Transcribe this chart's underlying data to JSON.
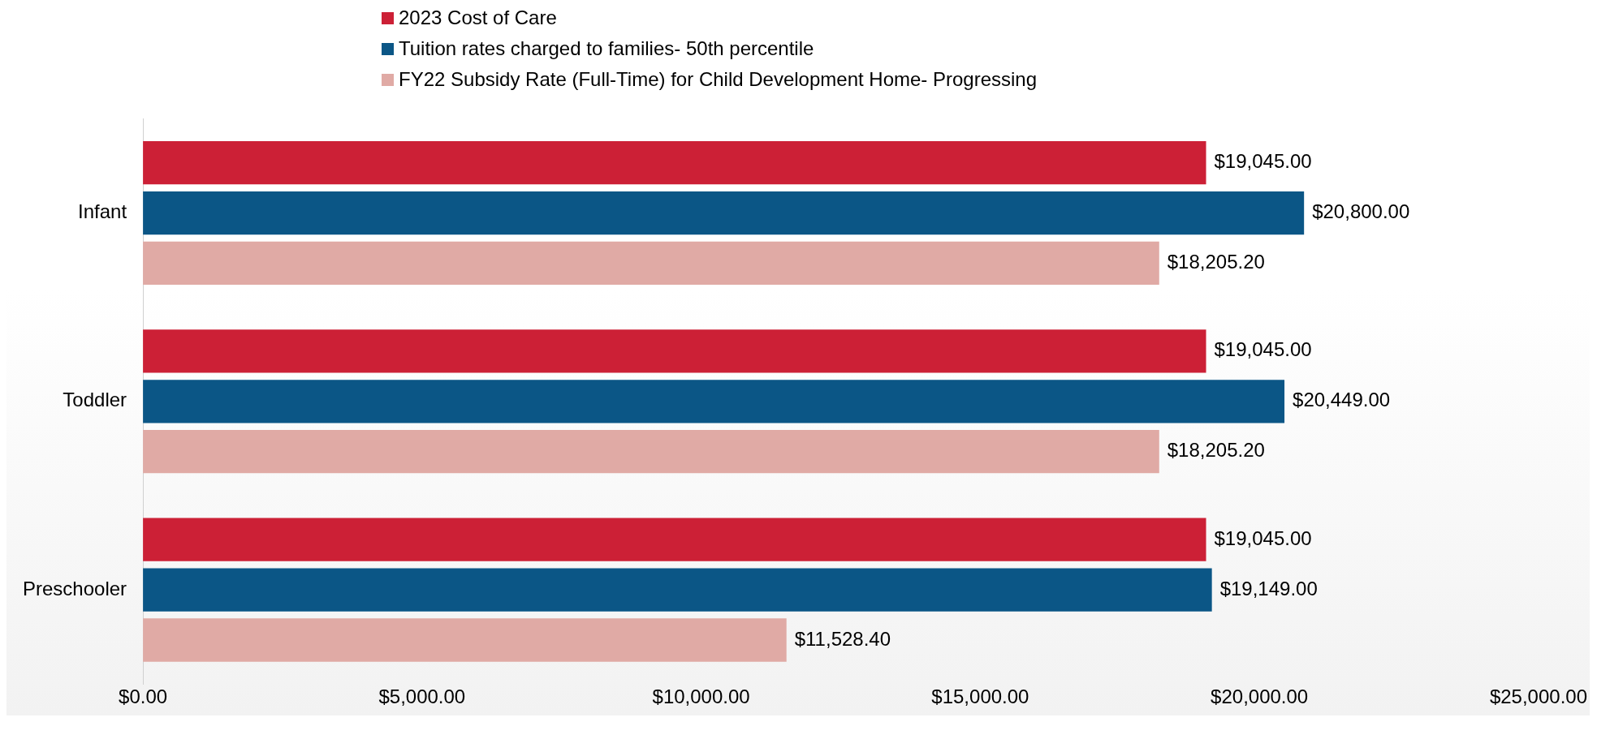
{
  "chart_data": {
    "type": "bar",
    "orientation": "horizontal",
    "categories": [
      "Infant",
      "Toddler",
      "Preschooler"
    ],
    "series": [
      {
        "name": "2023 Cost of Care",
        "color": "#cc2036",
        "values": [
          19045,
          19045,
          19045
        ],
        "value_labels": [
          "$19,045.00",
          "$19,045.00",
          "$19,045.00"
        ]
      },
      {
        "name": "Tuition rates charged to families- 50th percentile",
        "color": "#0b5686",
        "values": [
          20800,
          20449,
          19149
        ],
        "value_labels": [
          "$20,800.00",
          "$20,449.00",
          "$19,149.00"
        ]
      },
      {
        "name": "FY22 Subsidy Rate (Full-Time) for Child Development Home- Progressing",
        "color": "#e0aaa5",
        "values": [
          18205.2,
          18205.2,
          11528.4
        ],
        "value_labels": [
          "$18,205.20",
          "$18,205.20",
          "$11,528.40"
        ]
      }
    ],
    "xlim": [
      0,
      25000
    ],
    "xticks": [
      {
        "value": 0,
        "label": "$0.00"
      },
      {
        "value": 5000,
        "label": "$5,000.00"
      },
      {
        "value": 10000,
        "label": "$10,000.00"
      },
      {
        "value": 15000,
        "label": "$15,000.00"
      },
      {
        "value": 20000,
        "label": "$20,000.00"
      },
      {
        "value": 25000,
        "label": "$25,000.00"
      }
    ],
    "grid": false,
    "legend": "top"
  }
}
